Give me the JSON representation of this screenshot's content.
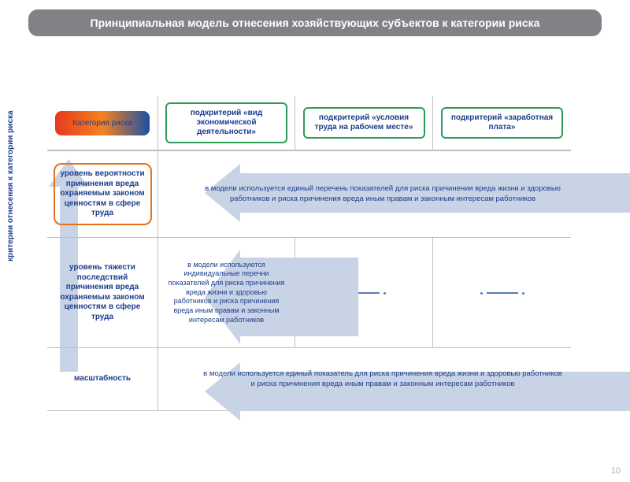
{
  "title": "Принципиальная модель отнесения хозяйствующих субъектов к категории риска",
  "vertical_axis_label": "критерии отнесения к категории риска",
  "header": {
    "category": "Категория риска",
    "sub1": "подкритерий «вид экономической деятельности»",
    "sub2": "подкритерий «условия труда на рабочем месте»",
    "sub3": "подкритерий «заработная плата»"
  },
  "rows": {
    "r1_label": "уровень вероятности причинения вреда охраняемым законом ценностям в сфере труда",
    "r1_desc": "в модели используется единый перечень показателей для риска причинения вреда жизни и здоровью работников и риска причинения вреда иным правам и законным интересам работников",
    "r2_label": "уровень тяжести последствий причинения вреда охраняемым законом ценностям в сфере труда",
    "r2_desc": "в модели используются индивидуальные перечни показателей для риска причинения вреда жизни и здоровью работников и риска причинения вреда иным правам и законным интересам работников",
    "r3_label": "масштабность",
    "r3_desc": "в модели используется единый показатель для риска причинения вреда жизни и здоровью работников и риска причинения вреда иным правам и законным интересам работников"
  },
  "page_number": "10",
  "colors": {
    "title_bg": "#808285",
    "text_blue": "#1c3e8c",
    "arrow_fill": "#c9d3e6",
    "green_border": "#2e9b5a",
    "orange_border": "#e8701a"
  }
}
